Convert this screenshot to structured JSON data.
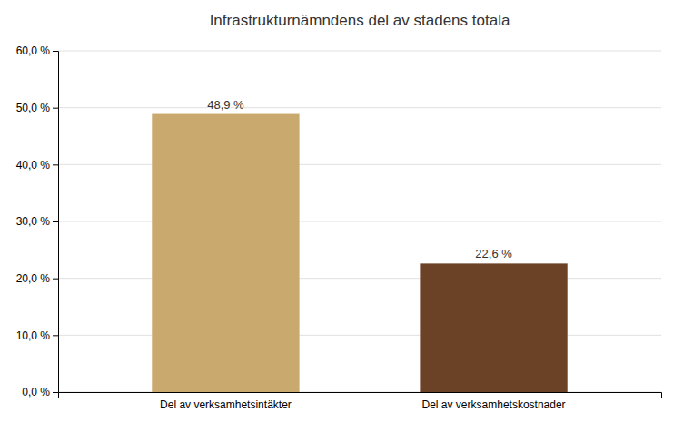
{
  "chart_data": {
    "type": "bar",
    "title": "Infrastrukturnämndens del av stadens totala",
    "categories": [
      "Del av verksamhetsintäkter",
      "Del av verksamhetskostnader"
    ],
    "values": [
      48.9,
      22.6
    ],
    "value_labels": [
      "48,9 %",
      "22,6 %"
    ],
    "colors": [
      "#C9A96E",
      "#6B4226"
    ],
    "ylim": [
      0,
      60
    ],
    "yticks": [
      {
        "value": 0,
        "label": "0,0 %"
      },
      {
        "value": 10,
        "label": "10,0 %"
      },
      {
        "value": 20,
        "label": "20,0 %"
      },
      {
        "value": 30,
        "label": "30,0 %"
      },
      {
        "value": 40,
        "label": "40,0 %"
      },
      {
        "value": 50,
        "label": "50,0 %"
      },
      {
        "value": 60,
        "label": "60,0 %"
      }
    ],
    "grid": true,
    "data_labels": true
  }
}
